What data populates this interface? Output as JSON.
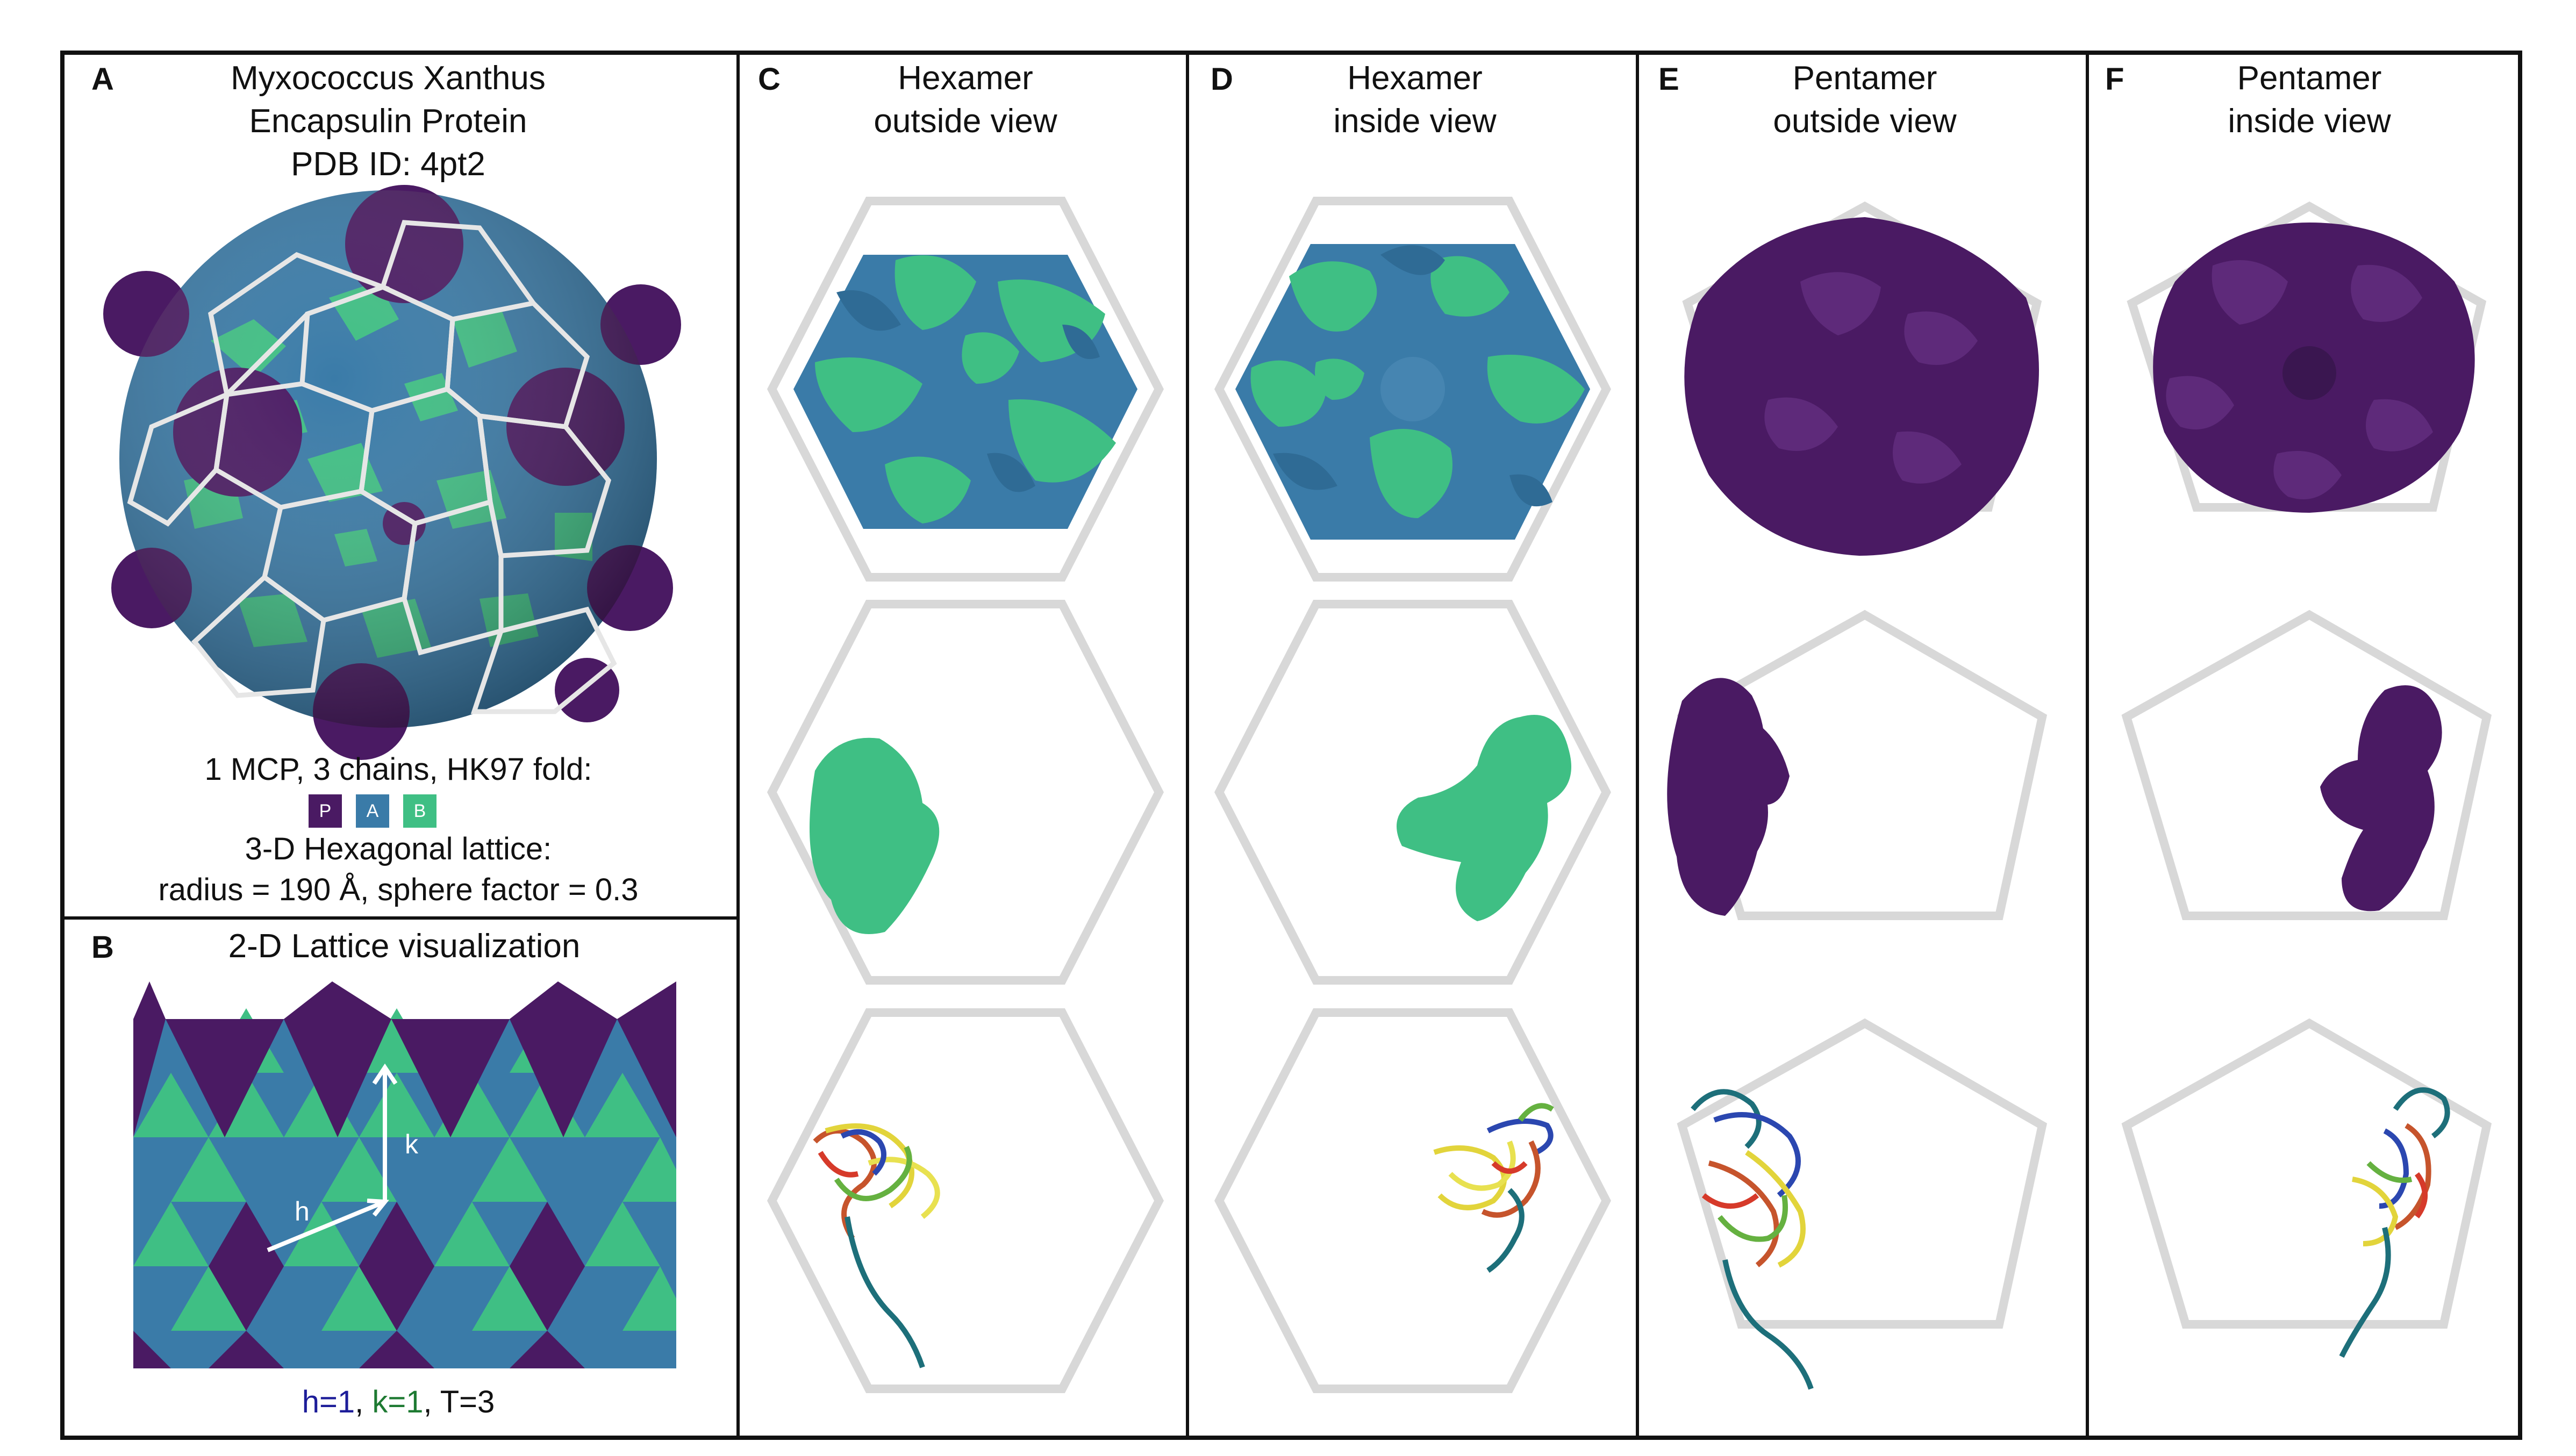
{
  "colors": {
    "purple": "#4a1a63",
    "blue": "#3a7ba8",
    "green": "#3fbf84",
    "lattice": "#dcdcdc",
    "h_label": "#1d1d99",
    "k_label": "#1e7a32"
  },
  "panel_a": {
    "letter": "A",
    "title_line1": "Myxococcus Xanthus",
    "title_line2": "Encapsulin Protein",
    "title_line3": "PDB ID: 4pt2",
    "caption_line1": "1 MCP, 3 chains, HK97 fold:",
    "legend": [
      {
        "label": "P",
        "color": "#4a1a63"
      },
      {
        "label": "A",
        "color": "#3a7ba8"
      },
      {
        "label": "B",
        "color": "#3fbf84"
      }
    ],
    "caption_line2": "3-D Hexagonal lattice:",
    "caption_line3": "radius = 190 Å, sphere factor = 0.3"
  },
  "panel_b": {
    "letter": "B",
    "title": "2-D Lattice visualization",
    "arrow_k": "k",
    "arrow_h": "h",
    "footer_h": "h=1",
    "footer_sep1": ", ",
    "footer_k": "k=1",
    "footer_sep2": ", ",
    "footer_t": "T=3"
  },
  "panel_c": {
    "letter": "C",
    "title_line1": "Hexamer",
    "title_line2": "outside view"
  },
  "panel_d": {
    "letter": "D",
    "title_line1": "Hexamer",
    "title_line2": "inside view"
  },
  "panel_e": {
    "letter": "E",
    "title_line1": "Pentamer",
    "title_line2": "outside view"
  },
  "panel_f": {
    "letter": "F",
    "title_line1": "Pentamer",
    "title_line2": "inside view"
  }
}
